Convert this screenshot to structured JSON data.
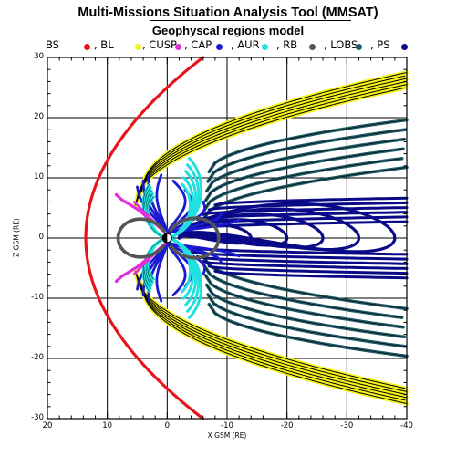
{
  "header": {
    "title": "Multi-Missions Situation Analysis Tool (MMSAT)",
    "subtitle": "Geophyscal regions model"
  },
  "legend": [
    {
      "label": "BS",
      "color": "#e8141b"
    },
    {
      "label": "BL",
      "color": "#f5f51a"
    },
    {
      "label": "CUSP",
      "color": "#e030d8"
    },
    {
      "label": "CAP",
      "color": "#1a1ad0"
    },
    {
      "label": "AUR",
      "color": "#20e0e0"
    },
    {
      "label": "RB",
      "color": "#555555"
    },
    {
      "label": "LOBS",
      "color": "#1f5c68"
    },
    {
      "label": "PS",
      "color": "#0a0a88"
    }
  ],
  "axes": {
    "xlabel": "X GSM (RE)",
    "ylabel": "Z GSM (RE)",
    "xlim": [
      20,
      -40
    ],
    "ylim": [
      -30,
      30
    ],
    "x_ticks": [
      "20",
      "10",
      "0",
      "-10",
      "-20",
      "-30",
      "-40"
    ],
    "y_ticks": [
      "30",
      "20",
      "10",
      "0",
      "-10",
      "-20",
      "-30"
    ],
    "grid": true
  },
  "colors": {
    "bow_shock": "#e8141b",
    "boundary_layer": "#f5f51a",
    "cusp": "#e030d8",
    "polar_cap": "#1a1ad0",
    "auroral": "#20e0e0",
    "radiation_belt": "#555555",
    "lobes": "#1f5c68",
    "plasma_sheet": "#0a0a88"
  }
}
